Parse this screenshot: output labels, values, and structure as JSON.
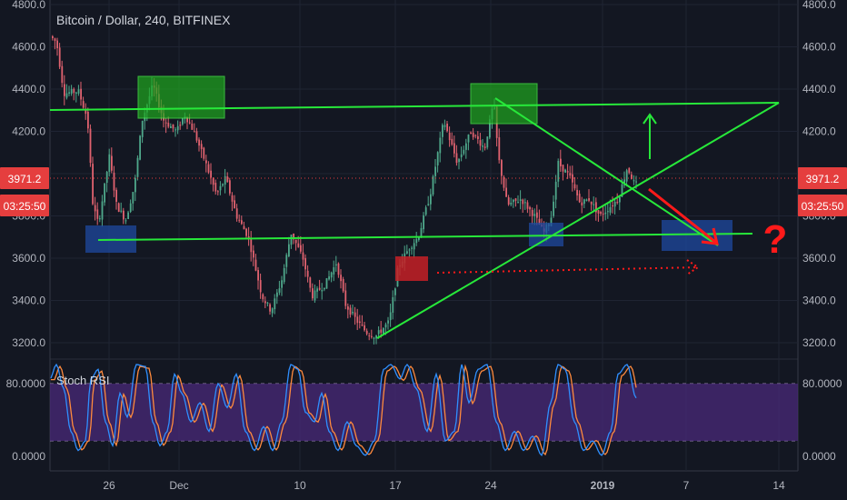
{
  "header": {
    "title": "Bitcoin / Dollar, 240, BITFINEX"
  },
  "indicator": {
    "name": "Stoch RSI"
  },
  "price_badge": {
    "value": "3971.2",
    "countdown": "03:25:50"
  },
  "colors": {
    "background": "#131722",
    "up_candle": "#4fa88b",
    "down_candle": "#e0626f",
    "trend_line": "#27e83a",
    "support_box": "#1f4aa0",
    "resistance_box": "#1fa81f",
    "breakout_box": "#c62026",
    "projection_arrow": "#ff1a1a",
    "stoch_band": "#4a2a7a",
    "stoch_k": "#2f8fff",
    "stoch_d": "#ff8a3d",
    "badge_bg": "#e53e3e"
  },
  "chart_data": [
    {
      "type": "candlestick",
      "x_ticks": [
        "26",
        "Dec",
        "10",
        "17",
        "24",
        "2019",
        "7",
        "14"
      ],
      "y_ticks": [
        "3200.0",
        "3400.0",
        "3600.0",
        "3800.0",
        "4000.0",
        "4200.0",
        "4400.0",
        "4600.0",
        "4800.0"
      ],
      "ylim": [
        3150,
        4800
      ],
      "last_price": 3971.2,
      "annotations": {
        "question_mark": "?",
        "up_arrow": "up-arrow",
        "down_arrow": "down-arrow"
      }
    },
    {
      "type": "line",
      "title": "Stoch RSI",
      "y_ticks": [
        "0.0000",
        "80.0000"
      ],
      "band": [
        20,
        80
      ],
      "ylim": [
        0,
        100
      ]
    }
  ]
}
